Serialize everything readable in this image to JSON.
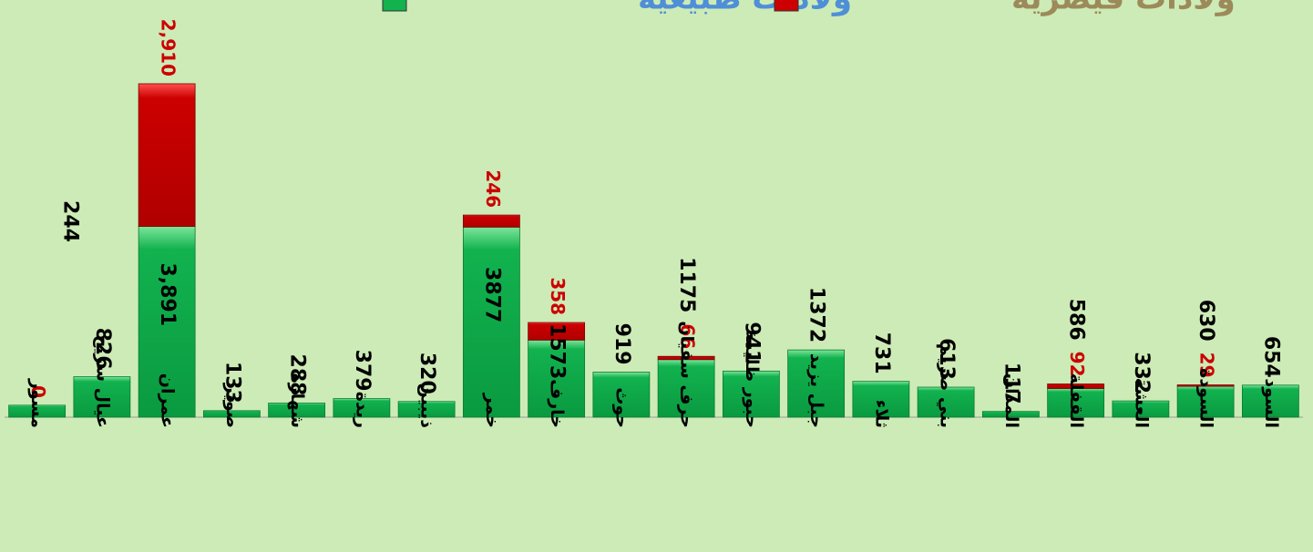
{
  "chart_data": {
    "type": "stacked_bar",
    "categories": [
      "مسور",
      "عيال سريح",
      "عمران",
      "صوير",
      "شهارة",
      "ريدة",
      "ذيبين",
      "خمر",
      "خارف",
      "حوث",
      "حرف سفيان",
      "حبور ظليمة",
      "جبل يزيد",
      "ثلاء",
      "بني صريم",
      "المدان",
      "القفلة",
      "العشة",
      "السودة",
      "السود"
    ],
    "series": [
      {
        "name": "ولادات طبيعية",
        "color": "#12b24f",
        "legend_color": "#4f8fd8",
        "values": [
          244,
          826,
          3891,
          133,
          288,
          379,
          320,
          3877,
          1573,
          919,
          1175,
          941,
          1372,
          731,
          613,
          117,
          586,
          332,
          630,
          654
        ],
        "value_labels": [
          "244",
          "826",
          "3,891",
          "133",
          "288",
          "379",
          "320",
          "3877",
          "1573",
          "919",
          "1175",
          "941",
          "1372",
          "731",
          "613",
          "117",
          "586",
          "332",
          "630",
          "654"
        ]
      },
      {
        "name": "ولادات قيصرية",
        "color": "#cc0000",
        "legend_color": "#9c8a5a",
        "values": [
          0,
          null,
          2910,
          null,
          null,
          null,
          null,
          246,
          358,
          null,
          66,
          null,
          null,
          null,
          null,
          null,
          92,
          null,
          29,
          null
        ],
        "value_labels": [
          "0",
          null,
          "2,910",
          null,
          null,
          null,
          null,
          "246",
          "358",
          null,
          "66",
          null,
          null,
          null,
          null,
          null,
          "92",
          null,
          "29",
          null
        ]
      }
    ],
    "ylim": [
      0,
      6800
    ]
  }
}
